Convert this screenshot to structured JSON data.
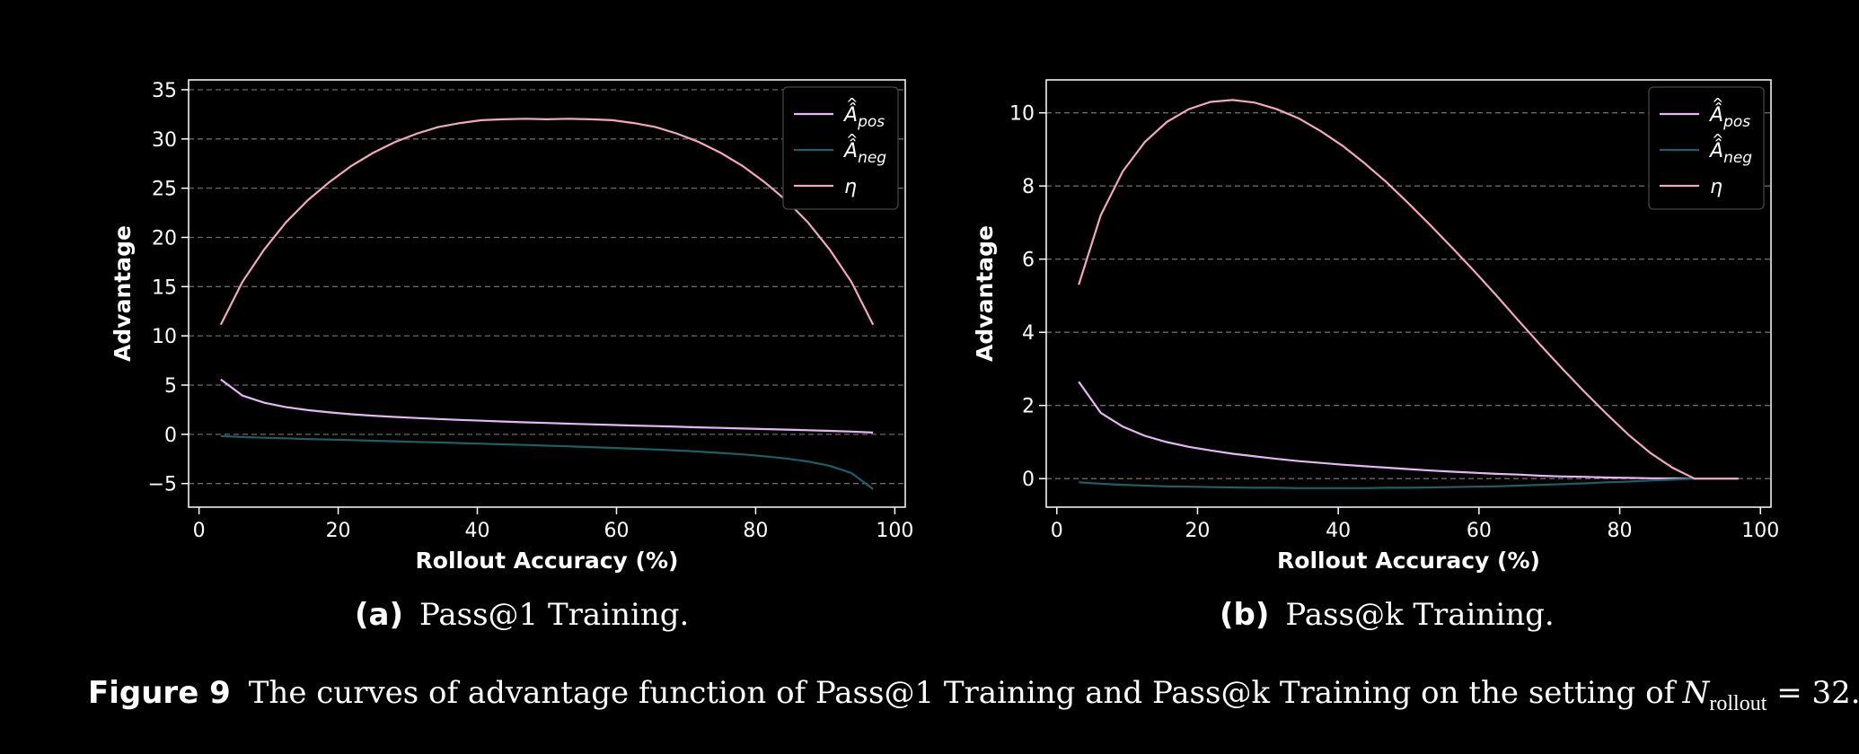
{
  "chart_data": [
    {
      "type": "line",
      "xlabel": "Rollout Accuracy (%)",
      "ylabel": "Advantage",
      "xlim": [
        -1.5,
        101.5
      ],
      "ylim": [
        -7.4,
        36.0
      ],
      "xticks": [
        0,
        20,
        40,
        60,
        80,
        100
      ],
      "xtick_labels": [
        "0",
        "20",
        "40",
        "60",
        "80",
        "100"
      ],
      "yticks": [
        -5,
        0,
        5,
        10,
        15,
        20,
        25,
        30,
        35
      ],
      "ytick_labels": [
        "−5",
        "0",
        "5",
        "10",
        "15",
        "20",
        "25",
        "30",
        "35"
      ],
      "grid": "horizontal dashed",
      "legend_position": "top-right",
      "x": [
        3.125,
        6.25,
        9.375,
        12.5,
        15.625,
        18.75,
        21.875,
        25,
        28.125,
        31.25,
        34.375,
        37.5,
        40.625,
        43.75,
        46.875,
        50,
        53.125,
        56.25,
        59.375,
        62.5,
        65.625,
        68.75,
        71.875,
        75,
        78.125,
        81.25,
        84.375,
        87.5,
        90.625,
        93.75,
        96.875
      ],
      "series": [
        {
          "name": "Â_pos",
          "color": "#e7b6f4",
          "values": [
            5.57,
            3.93,
            3.2,
            2.76,
            2.46,
            2.23,
            2.04,
            1.89,
            1.76,
            1.65,
            1.55,
            1.46,
            1.38,
            1.3,
            1.22,
            1.15,
            1.08,
            1.02,
            0.95,
            0.89,
            0.83,
            0.77,
            0.71,
            0.65,
            0.59,
            0.53,
            0.48,
            0.41,
            0.35,
            0.28,
            0.18
          ]
        },
        {
          "name": "Â_neg",
          "color": "#1c5f66",
          "values": [
            -0.18,
            -0.28,
            -0.35,
            -0.41,
            -0.48,
            -0.53,
            -0.59,
            -0.65,
            -0.71,
            -0.77,
            -0.83,
            -0.89,
            -0.95,
            -1.02,
            -1.08,
            -1.15,
            -1.22,
            -1.3,
            -1.38,
            -1.46,
            -1.55,
            -1.65,
            -1.76,
            -1.89,
            -2.04,
            -2.23,
            -2.46,
            -2.76,
            -3.2,
            -3.93,
            -5.57
          ]
        },
        {
          "name": "η",
          "color": "#f2a7c2",
          "values": [
            11.13,
            15.49,
            18.79,
            21.54,
            23.77,
            25.63,
            27.26,
            28.58,
            29.67,
            30.53,
            31.2,
            31.61,
            31.91,
            32.0,
            32.05,
            32.0,
            32.05,
            32.0,
            31.91,
            31.61,
            31.2,
            30.53,
            29.67,
            28.58,
            27.26,
            25.63,
            23.77,
            21.54,
            18.79,
            15.49,
            11.13
          ]
        }
      ]
    },
    {
      "type": "line",
      "xlabel": "Rollout Accuracy (%)",
      "ylabel": "Advantage",
      "xlim": [
        -1.5,
        101.5
      ],
      "ylim": [
        -0.78,
        10.9
      ],
      "xticks": [
        0,
        20,
        40,
        60,
        80,
        100
      ],
      "xtick_labels": [
        "0",
        "20",
        "40",
        "60",
        "80",
        "100"
      ],
      "yticks": [
        0,
        2,
        4,
        6,
        8,
        10
      ],
      "ytick_labels": [
        "0",
        "2",
        "4",
        "6",
        "8",
        "10"
      ],
      "grid": "horizontal dashed",
      "legend_position": "top-right",
      "x": [
        3.125,
        6.25,
        9.375,
        12.5,
        15.625,
        18.75,
        21.875,
        25,
        28.125,
        31.25,
        34.375,
        37.5,
        40.625,
        43.75,
        46.875,
        50,
        53.125,
        56.25,
        59.375,
        62.5,
        65.625,
        68.75,
        71.875,
        75,
        78.125,
        81.25,
        84.375,
        87.5,
        90.625,
        93.75,
        96.875
      ],
      "series": [
        {
          "name": "Â_pos",
          "color": "#e7b6f4",
          "values": [
            2.65,
            1.8,
            1.42,
            1.17,
            1.0,
            0.87,
            0.77,
            0.68,
            0.61,
            0.54,
            0.48,
            0.43,
            0.38,
            0.34,
            0.3,
            0.26,
            0.22,
            0.19,
            0.16,
            0.13,
            0.11,
            0.08,
            0.06,
            0.05,
            0.03,
            0.02,
            0.01,
            0.005,
            0.0,
            0.0,
            0.0
          ]
        },
        {
          "name": "Â_neg",
          "color": "#1c5f66",
          "values": [
            -0.1,
            -0.14,
            -0.17,
            -0.19,
            -0.21,
            -0.22,
            -0.23,
            -0.24,
            -0.25,
            -0.25,
            -0.26,
            -0.26,
            -0.26,
            -0.26,
            -0.25,
            -0.25,
            -0.24,
            -0.23,
            -0.22,
            -0.21,
            -0.19,
            -0.17,
            -0.15,
            -0.13,
            -0.1,
            -0.08,
            -0.05,
            -0.03,
            0.0,
            0.0,
            0.0
          ]
        },
        {
          "name": "η",
          "color": "#f2a7c2",
          "values": [
            5.3,
            7.2,
            8.4,
            9.2,
            9.75,
            10.1,
            10.3,
            10.35,
            10.28,
            10.1,
            9.85,
            9.5,
            9.1,
            8.62,
            8.1,
            7.52,
            6.92,
            6.3,
            5.66,
            5.0,
            4.32,
            3.65,
            3.0,
            2.37,
            1.77,
            1.2,
            0.7,
            0.3,
            0.0,
            0.0,
            0.0
          ]
        }
      ]
    }
  ],
  "subcaptions": [
    {
      "label": "(a)",
      "text": "Pass@1 Training."
    },
    {
      "label": "(b)",
      "text": "Pass@k Training."
    }
  ],
  "caption": {
    "label": "Figure 9",
    "text": "The curves of advantage function of Pass@1 Training and Pass@k Training on the setting of",
    "math_var": "N",
    "math_sub": "rollout",
    "math_rest": " = 32."
  }
}
